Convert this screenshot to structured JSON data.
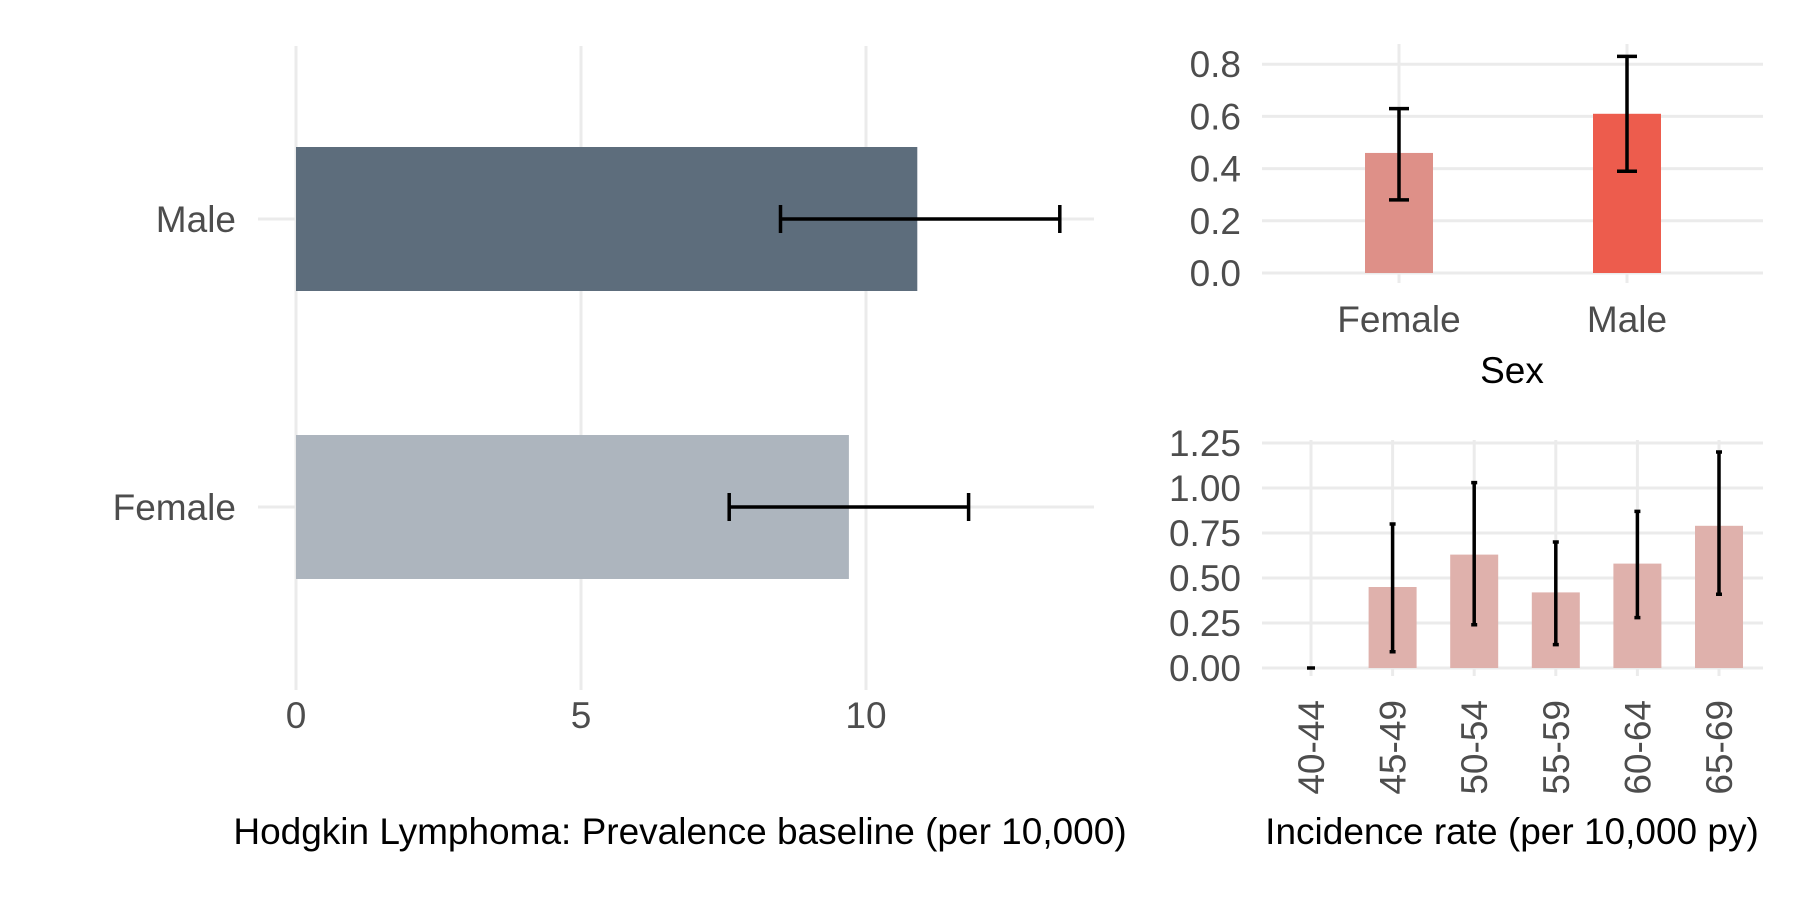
{
  "colors": {
    "male_dark": "#5d6d7c",
    "female_light": "#adb5be",
    "sex_female": "#de9088",
    "sex_male": "#ed5c4d",
    "age_bar": "#dfb1ac",
    "grid": "#ebebeb",
    "error_bar": "#000000"
  },
  "chart_data": [
    {
      "id": "prevalence",
      "type": "bar",
      "orientation": "horizontal",
      "categories": [
        "Male",
        "Female"
      ],
      "values": [
        10.9,
        9.7
      ],
      "error_low": [
        8.5,
        7.6
      ],
      "error_high": [
        13.4,
        11.8
      ],
      "xlabel": "Hodgkin Lymphoma: Prevalence baseline (per 10,000)",
      "ylabel": "",
      "xlim": [
        0,
        14
      ],
      "xticks": [
        0,
        5,
        10
      ],
      "xtick_labels": [
        "0",
        "5",
        "10"
      ],
      "grid": true,
      "legend": "none"
    },
    {
      "id": "incidence_sex",
      "type": "bar",
      "categories": [
        "Female",
        "Male"
      ],
      "values": [
        0.46,
        0.61
      ],
      "error_low": [
        0.28,
        0.39
      ],
      "error_high": [
        0.63,
        0.83
      ],
      "xlabel": "Sex",
      "ylabel": "",
      "ylim": [
        0,
        0.85
      ],
      "yticks": [
        0,
        0.2,
        0.4,
        0.6,
        0.8
      ],
      "ytick_labels": [
        "0.0",
        "0.2",
        "0.4",
        "0.6",
        "0.8"
      ],
      "grid": true,
      "legend": "none"
    },
    {
      "id": "incidence_age",
      "type": "bar",
      "categories": [
        "40-44",
        "45-49",
        "50-54",
        "55-59",
        "60-64",
        "65-69"
      ],
      "values": [
        0,
        0.45,
        0.63,
        0.42,
        0.58,
        0.79
      ],
      "error_low": [
        0,
        0.09,
        0.24,
        0.13,
        0.28,
        0.41
      ],
      "error_high": [
        0,
        0.8,
        1.03,
        0.7,
        0.87,
        1.2
      ],
      "xlabel": "Incidence rate (per 10,000 py)",
      "ylabel": "",
      "ylim": [
        0,
        1.26
      ],
      "yticks": [
        0,
        0.25,
        0.5,
        0.75,
        1.0,
        1.25
      ],
      "ytick_labels": [
        "0.00",
        "0.25",
        "0.50",
        "0.75",
        "1.00",
        "1.25"
      ],
      "grid": true,
      "legend": "none"
    }
  ]
}
